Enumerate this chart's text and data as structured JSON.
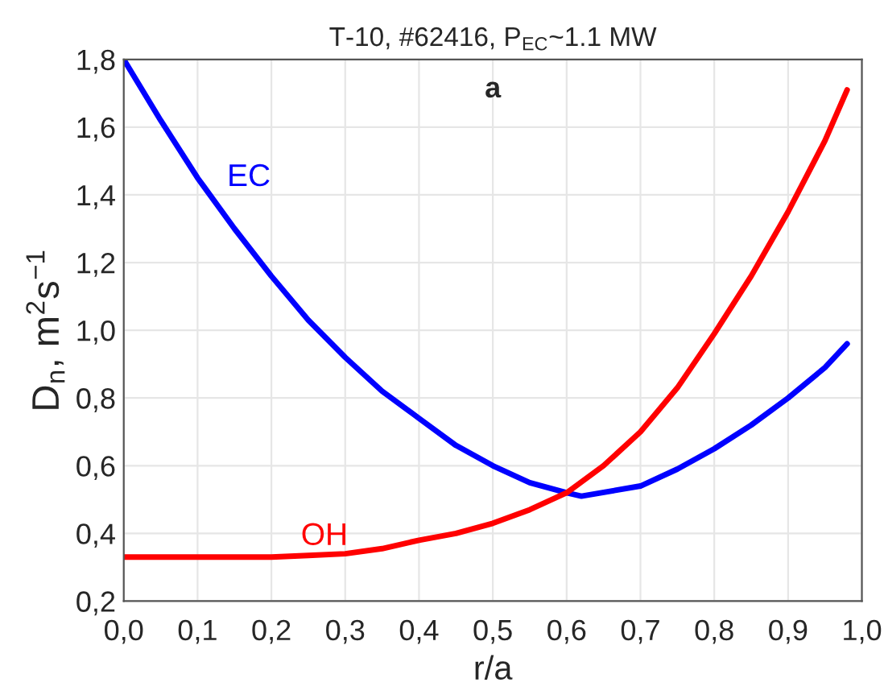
{
  "chart_data": {
    "type": "line",
    "title": "T-10, #62416, P$_{EC}$~1.1 MW",
    "xlabel": "r/a",
    "ylabel": "D$_{n}$, m$^{2}$s$^{−1}$",
    "annotations": [
      "a"
    ],
    "xlim": [
      0,
      1
    ],
    "ylim": [
      0.2,
      1.8
    ],
    "xticks": [
      {
        "value": 0,
        "label": "0,0"
      },
      {
        "value": 0.1,
        "label": "0,1"
      },
      {
        "value": 0.2,
        "label": "0,2"
      },
      {
        "value": 0.3,
        "label": "0,3"
      },
      {
        "value": 0.4,
        "label": "0,4"
      },
      {
        "value": 0.5,
        "label": "0,5"
      },
      {
        "value": 0.6,
        "label": "0,6"
      },
      {
        "value": 0.7,
        "label": "0,7"
      },
      {
        "value": 0.8,
        "label": "0,8"
      },
      {
        "value": 0.9,
        "label": "0,9"
      },
      {
        "value": 1,
        "label": "1,0"
      }
    ],
    "yticks": [
      {
        "value": 0.2,
        "label": "0,2"
      },
      {
        "value": 0.4,
        "label": "0,4"
      },
      {
        "value": 0.6,
        "label": "0,6"
      },
      {
        "value": 0.8,
        "label": "0,8"
      },
      {
        "value": 1.0,
        "label": "1,0"
      },
      {
        "value": 1.2,
        "label": "1,2"
      },
      {
        "value": 1.4,
        "label": "1,4"
      },
      {
        "value": 1.6,
        "label": "1,6"
      },
      {
        "value": 1.8,
        "label": "1,8"
      }
    ],
    "grid": true,
    "legend": false,
    "marker": "none",
    "line_style": "solid",
    "series": [
      {
        "name": "EC",
        "color": "#0000ff",
        "x": [
          0,
          0.05,
          0.1,
          0.15,
          0.2,
          0.25,
          0.3,
          0.35,
          0.4,
          0.45,
          0.5,
          0.55,
          0.6,
          0.62,
          0.7,
          0.75,
          0.8,
          0.85,
          0.9,
          0.95,
          0.98
        ],
        "values": [
          1.8,
          1.62,
          1.45,
          1.3,
          1.16,
          1.03,
          0.92,
          0.82,
          0.74,
          0.66,
          0.6,
          0.55,
          0.52,
          0.51,
          0.54,
          0.59,
          0.65,
          0.72,
          0.8,
          0.89,
          0.96
        ]
      },
      {
        "name": "OH",
        "color": "#ff0000",
        "x": [
          0,
          0.1,
          0.2,
          0.25,
          0.3,
          0.35,
          0.4,
          0.45,
          0.5,
          0.55,
          0.6,
          0.65,
          0.7,
          0.75,
          0.8,
          0.85,
          0.9,
          0.95,
          0.98
        ],
        "values": [
          0.33,
          0.33,
          0.33,
          0.335,
          0.34,
          0.355,
          0.38,
          0.4,
          0.43,
          0.47,
          0.52,
          0.6,
          0.7,
          0.83,
          0.99,
          1.16,
          1.35,
          1.56,
          1.71
        ]
      }
    ]
  }
}
